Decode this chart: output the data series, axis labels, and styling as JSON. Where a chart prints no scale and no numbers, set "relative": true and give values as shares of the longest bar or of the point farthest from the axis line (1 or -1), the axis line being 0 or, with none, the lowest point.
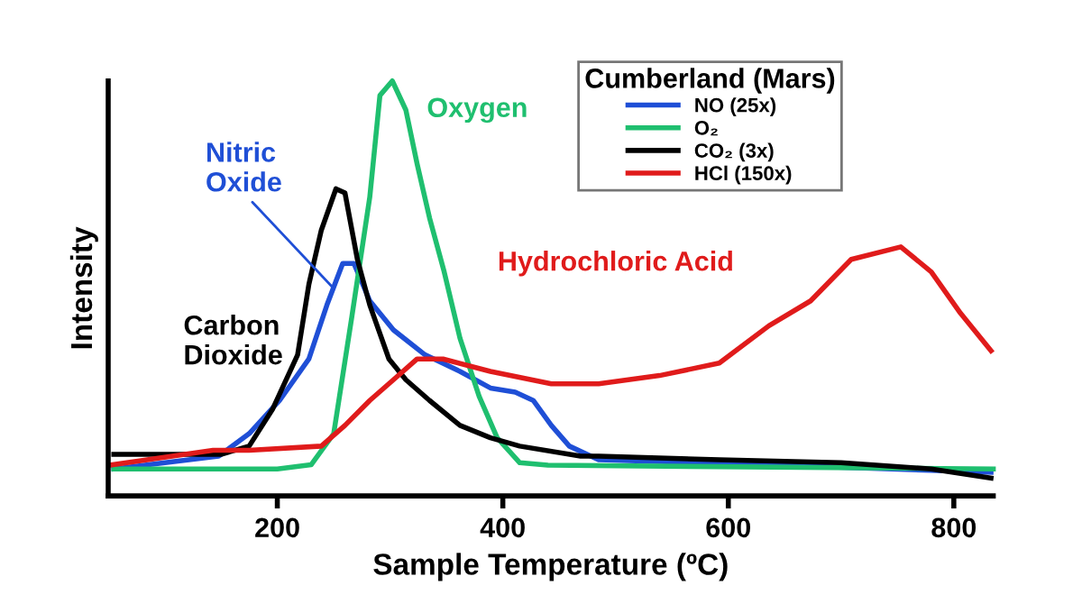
{
  "chart_data": {
    "type": "line",
    "relative": true,
    "xlabel": "Sample Temperature (ºC)",
    "ylabel": "Intensity",
    "xlim": [
      50,
      835
    ],
    "xticks": [
      200,
      400,
      600,
      800
    ],
    "legend": "top right",
    "legend_title": "Cumberland (Mars)",
    "grid": false,
    "marker": "none",
    "line_style": "solid",
    "annotations": [
      "Oxygen",
      {
        "text": "Nitric\nOxide",
        "x": 250,
        "y": 0.5
      },
      "Carbon\nDioxide",
      "Hydrochloric Acid"
    ],
    "series": [
      {
        "name": "NO (25x)",
        "color": "#1f4fd6",
        "x": [
          55,
          148,
          175,
          202,
          228,
          244,
          258,
          268,
          282,
          303,
          331,
          362,
          389,
          411,
          427,
          443,
          459,
          485,
          645,
          833
        ],
        "values": [
          0.065,
          0.096,
          0.15,
          0.23,
          0.33,
          0.46,
          0.56,
          0.56,
          0.47,
          0.4,
          0.34,
          0.3,
          0.26,
          0.25,
          0.23,
          0.17,
          0.12,
          0.087,
          0.074,
          0.057
        ]
      },
      {
        "name": "O₂",
        "color": "#1fbf6f",
        "x": [
          55,
          200,
          230,
          250,
          266,
          282,
          291,
          302,
          314,
          324,
          335,
          348,
          362,
          379,
          395,
          415,
          440,
          835
        ],
        "values": [
          0.065,
          0.065,
          0.075,
          0.15,
          0.43,
          0.72,
          0.965,
          1.0,
          0.93,
          0.8,
          0.67,
          0.54,
          0.38,
          0.24,
          0.14,
          0.08,
          0.074,
          0.065
        ]
      },
      {
        "name": "CO₂ (3x)",
        "color": "#000000",
        "x": [
          55,
          150,
          175,
          196,
          218,
          228,
          239,
          252,
          260,
          271,
          282,
          299,
          314,
          335,
          362,
          389,
          415,
          469,
          485,
          592,
          700,
          780,
          833
        ],
        "values": [
          0.1,
          0.1,
          0.12,
          0.21,
          0.34,
          0.51,
          0.64,
          0.74,
          0.73,
          0.57,
          0.46,
          0.33,
          0.28,
          0.23,
          0.17,
          0.14,
          0.12,
          0.096,
          0.096,
          0.087,
          0.08,
          0.065,
          0.043
        ]
      },
      {
        "name": "HCl (150x)",
        "color": "#e01b1b",
        "x": [
          51,
          143,
          175,
          239,
          260,
          282,
          303,
          324,
          347,
          389,
          443,
          485,
          539,
          592,
          636,
          673,
          709,
          753,
          780,
          806,
          833
        ],
        "values": [
          0.074,
          0.11,
          0.11,
          0.12,
          0.17,
          0.23,
          0.28,
          0.33,
          0.33,
          0.3,
          0.27,
          0.27,
          0.29,
          0.32,
          0.41,
          0.47,
          0.57,
          0.6,
          0.54,
          0.44,
          0.35
        ]
      }
    ]
  }
}
